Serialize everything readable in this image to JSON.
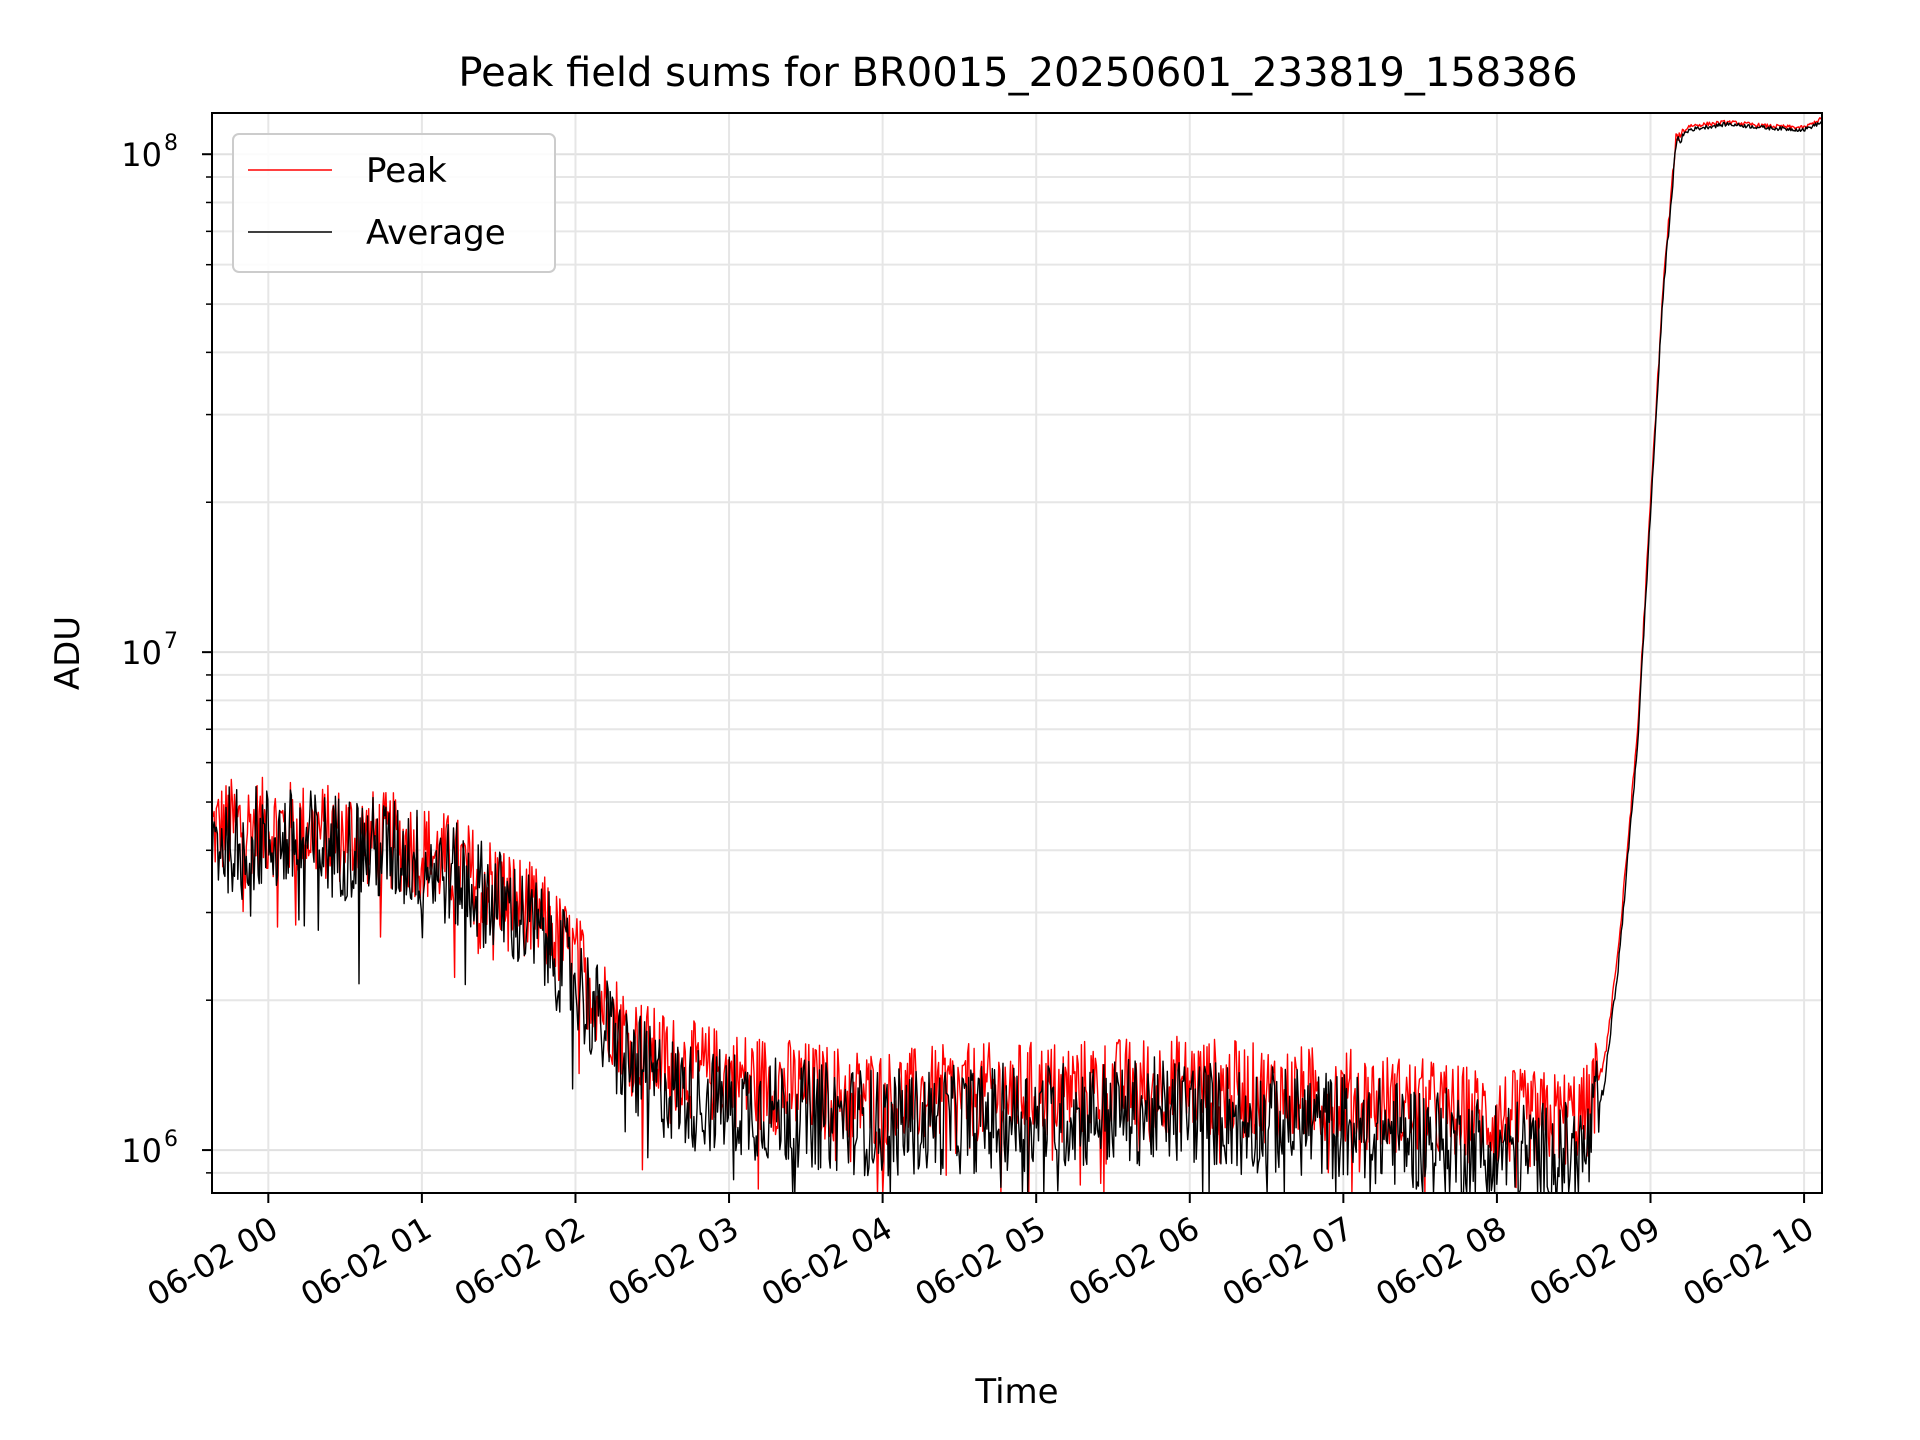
{
  "chart_data": {
    "type": "line",
    "title": "Peak field sums for BR0015_20250601_233819_158386",
    "xlabel": "Time",
    "ylabel": "ADU",
    "yscale": "log",
    "ylim": [
      820000,
      121000000
    ],
    "xlim": [
      "2025-06-01 23:38",
      "2025-06-02 10:07"
    ],
    "grid": true,
    "legend_position": "top-left",
    "x_ticks": [
      "06-02 00",
      "06-02 01",
      "06-02 02",
      "06-02 03",
      "06-02 04",
      "06-02 05",
      "06-02 06",
      "06-02 07",
      "06-02 08",
      "06-02 09",
      "06-02 10"
    ],
    "y_ticks": [
      {
        "value": 1000000,
        "base": "10",
        "exp": "6"
      },
      {
        "value": 10000000,
        "base": "10",
        "exp": "7"
      },
      {
        "value": 100000000,
        "base": "10",
        "exp": "8"
      }
    ],
    "x": [
      "2025-06-01 23:38",
      "2025-06-01 23:50",
      "2025-06-02 00:10",
      "2025-06-02 00:30",
      "2025-06-02 00:50",
      "2025-06-02 01:00",
      "2025-06-02 01:15",
      "2025-06-02 01:30",
      "2025-06-02 01:45",
      "2025-06-02 02:00",
      "2025-06-02 02:10",
      "2025-06-02 02:20",
      "2025-06-02 02:30",
      "2025-06-02 02:45",
      "2025-06-02 03:00",
      "2025-06-02 03:30",
      "2025-06-02 04:00",
      "2025-06-02 04:30",
      "2025-06-02 05:00",
      "2025-06-02 05:30",
      "2025-06-02 06:00",
      "2025-06-02 06:30",
      "2025-06-02 07:00",
      "2025-06-02 07:30",
      "2025-06-02 08:00",
      "2025-06-02 08:20",
      "2025-06-02 08:35",
      "2025-06-02 08:42",
      "2025-06-02 08:48",
      "2025-06-02 08:55",
      "2025-06-02 09:00",
      "2025-06-02 09:05",
      "2025-06-02 09:10",
      "2025-06-02 09:15",
      "2025-06-02 09:30",
      "2025-06-02 09:45",
      "2025-06-02 10:00",
      "2025-06-02 10:07"
    ],
    "series": [
      {
        "name": "Peak",
        "color": "#ff0000",
        "values": [
          4400000,
          4500000,
          4400000,
          4300000,
          4150000,
          4000000,
          3700000,
          3350000,
          2950000,
          2400000,
          2000000,
          1700000,
          1550000,
          1450000,
          1400000,
          1320000,
          1270000,
          1300000,
          1320000,
          1340000,
          1360000,
          1300000,
          1280000,
          1220000,
          1160000,
          1150000,
          1180000,
          1500000,
          2700000,
          7000000,
          20000000,
          55000000,
          108000000,
          114000000,
          116000000,
          114000000,
          113000000,
          118000000
        ]
      },
      {
        "name": "Average",
        "color": "#000000",
        "values": [
          4150000,
          4250000,
          4150000,
          4080000,
          3950000,
          3800000,
          3500000,
          3150000,
          2750000,
          2200000,
          1800000,
          1520000,
          1380000,
          1280000,
          1240000,
          1180000,
          1130000,
          1150000,
          1170000,
          1190000,
          1200000,
          1150000,
          1120000,
          1060000,
          1000000,
          970000,
          980000,
          1350000,
          2500000,
          6600000,
          19000000,
          53000000,
          105000000,
          112000000,
          115000000,
          113000000,
          112000000,
          116000000
        ]
      }
    ],
    "noise": {
      "Peak": 0.1,
      "Average": 0.11
    }
  }
}
